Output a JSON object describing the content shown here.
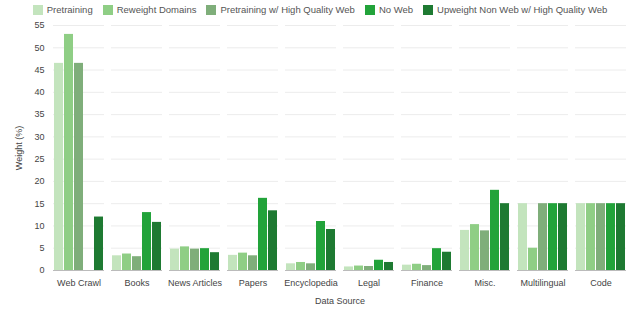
{
  "chart_data": {
    "type": "bar",
    "x_label": "Data Source",
    "y_label": "Weight (%)",
    "categories": [
      "Web Crawl",
      "Books",
      "News Articles",
      "Papers",
      "Encyclopedia",
      "Legal",
      "Finance",
      "Misc.",
      "Multilingual",
      "Code"
    ],
    "series": [
      {
        "name": "Pretraining",
        "color": "#c3e4bd",
        "values": [
          46.5,
          3.3,
          4.8,
          3.4,
          1.5,
          0.8,
          1.2,
          9,
          15,
          15
        ]
      },
      {
        "name": "Reweight Domains",
        "color": "#8fce85",
        "values": [
          53,
          3.7,
          5.3,
          3.9,
          1.8,
          1.0,
          1.4,
          10.3,
          5,
          15
        ]
      },
      {
        "name": "Pretraining w/ High Quality Web",
        "color": "#7fae7a",
        "values": [
          46.5,
          3.1,
          4.8,
          3.3,
          1.5,
          0.9,
          1.1,
          8.9,
          15,
          15
        ]
      },
      {
        "name": "No Web",
        "color": "#22a33a",
        "values": [
          0,
          13,
          4.9,
          16.2,
          11,
          2.3,
          4.9,
          18,
          15,
          15
        ]
      },
      {
        "name": "Upweight Non Web w/ High Quality Web",
        "color": "#1e7a32",
        "values": [
          12,
          10.8,
          4.0,
          13.4,
          9.2,
          1.8,
          4.1,
          15,
          15,
          15
        ]
      }
    ],
    "ylim": [
      0,
      55
    ],
    "yticks": [
      0,
      5,
      10,
      15,
      20,
      25,
      30,
      35,
      40,
      45,
      50,
      55
    ],
    "grid": true,
    "legend": "top"
  }
}
